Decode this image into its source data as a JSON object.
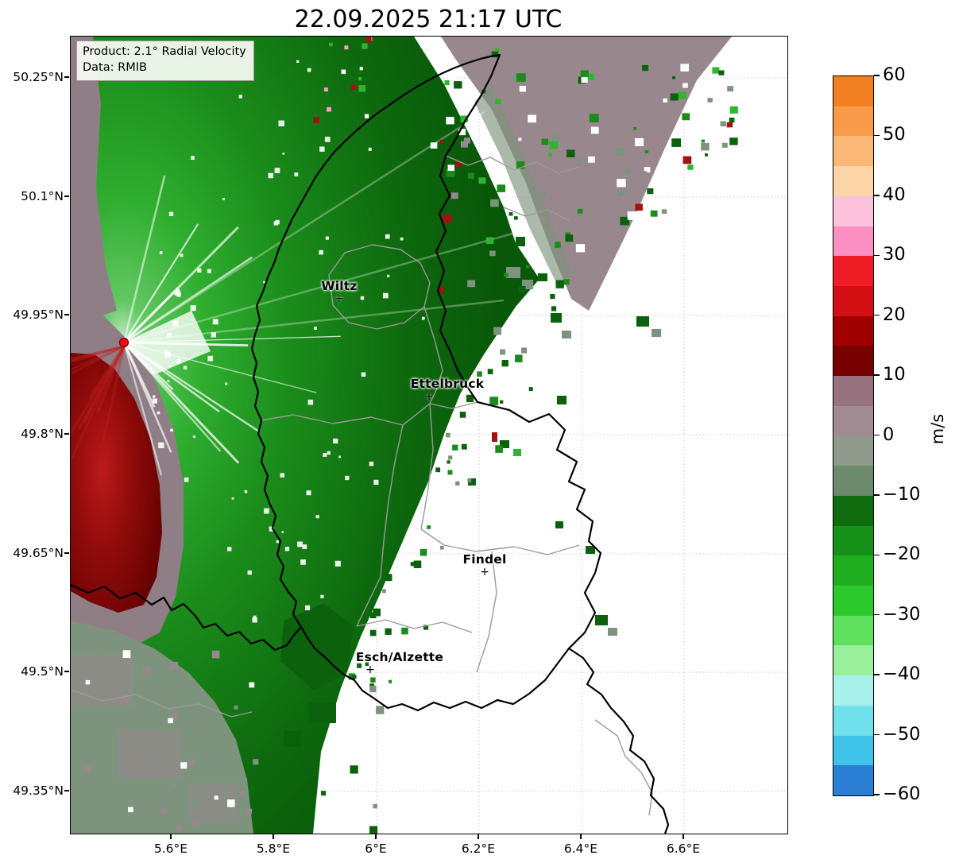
{
  "title": "22.09.2025 21:17 UTC",
  "legend": {
    "product": "Product: 2.1° Radial Velocity",
    "data_source": "Data: RMIB"
  },
  "map": {
    "xticks": [
      "5.6°E",
      "5.8°E",
      "6°E",
      "6.2°E",
      "6.4°E",
      "6.6°E"
    ],
    "yticks": [
      "50.25°N",
      "50.1°N",
      "49.95°N",
      "49.8°N",
      "49.65°N",
      "49.5°N",
      "49.35°N"
    ],
    "cities": [
      {
        "name": "Wiltz"
      },
      {
        "name": "Ettelbruck"
      },
      {
        "name": "Findel"
      },
      {
        "name": "Esch/Alzette"
      }
    ]
  },
  "colorbar": {
    "unit": "m/s",
    "ticks": [
      "60",
      "50",
      "40",
      "30",
      "20",
      "10",
      "0",
      "−10",
      "−20",
      "−30",
      "−40",
      "−50",
      "−60"
    ],
    "segment_colors": [
      "#f28022",
      "#f89a4a",
      "#fbb877",
      "#fdd6a7",
      "#fdc3dc",
      "#fb8fc2",
      "#ef1c25",
      "#d40f14",
      "#a00000",
      "#780000",
      "#96737e",
      "#a08b92",
      "#8f9a8c",
      "#6d8a6d",
      "#0e6b0e",
      "#169016",
      "#1fae1f",
      "#2cc92c",
      "#5fe05f",
      "#9aef9a",
      "#a8f0ea",
      "#6fe0ec",
      "#3fc3e8",
      "#2a7fd4"
    ]
  },
  "palette": {
    "green_dark": "#0c610c",
    "green_mid": "#1b8c1b",
    "green_bright": "#2fb52f",
    "gray_green": "#7e937e",
    "mauve": "#98888e",
    "mauve2": "#8f7e86",
    "red_mid": "#a31212",
    "radar_dot": "#e8100c"
  },
  "chart_data": {
    "type": "heatmap",
    "title": "22.09.2025 21:17 UTC",
    "product": "2.1° Radial Velocity",
    "data_source": "RMIB",
    "units": "m/s",
    "colorbar_range": [
      -60,
      60
    ],
    "colorbar_ticks": [
      60,
      50,
      40,
      30,
      20,
      10,
      0,
      -10,
      -20,
      -30,
      -40,
      -50,
      -60
    ],
    "x_axis": {
      "ticks_deg_east": [
        5.6,
        5.8,
        6.0,
        6.2,
        6.4,
        6.6
      ],
      "range_deg_east": [
        5.4,
        6.8
      ],
      "grid": true
    },
    "y_axis": {
      "ticks_deg_north": [
        50.25,
        50.1,
        49.95,
        49.8,
        49.65,
        49.5,
        49.35
      ],
      "range_deg_north": [
        49.3,
        50.3
      ],
      "grid": true
    },
    "radar_site": {
      "lon_deg_east": 5.51,
      "lat_deg_north": 49.92,
      "marker": "red dot"
    },
    "city_annotations": [
      {
        "name": "Wiltz",
        "lon_deg_east": 5.93,
        "lat_deg_north": 49.96
      },
      {
        "name": "Ettelbruck",
        "lon_deg_east": 6.1,
        "lat_deg_north": 49.85
      },
      {
        "name": "Findel",
        "lon_deg_east": 6.21,
        "lat_deg_north": 49.63
      },
      {
        "name": "Esch/Alzette",
        "lon_deg_east": 5.99,
        "lat_deg_north": 49.5
      }
    ],
    "field_regions": [
      {
        "velocity_m_s": "-5 to -30 (inbound)",
        "color": "green shades",
        "location": "broad sector north and east of radar covering northern Luxembourg and the northwest of the map"
      },
      {
        "velocity_m_s": "+10 to +25 (outbound)",
        "color": "dark red",
        "location": "compact wedge south-southwest of the radar along the western map edge"
      },
      {
        "velocity_m_s": "-5 to +10 (near zero)",
        "color": "gray / mauve",
        "location": "band along the northeastern edge, western fringe and southwestern corner"
      },
      {
        "velocity_m_s": "no data",
        "color": "white",
        "location": "southeastern half of the map with scattered small echoes"
      }
    ]
  }
}
